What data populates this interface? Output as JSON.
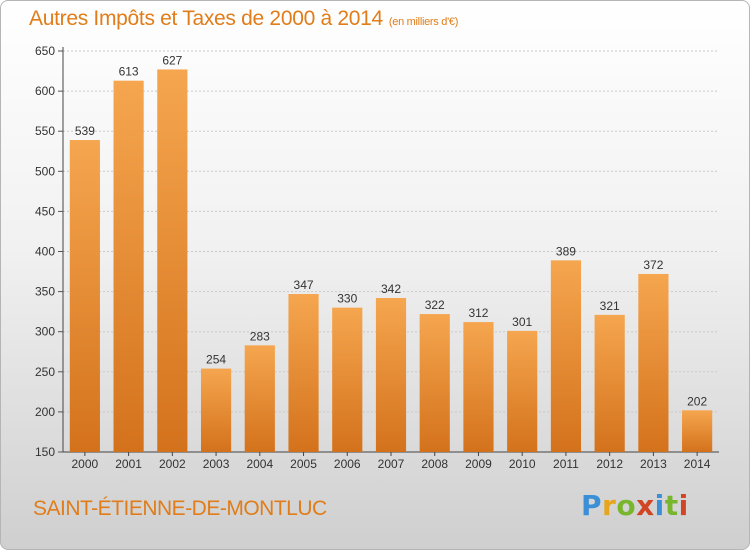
{
  "title": "Autres Impôts et Taxes de 2000 à 2014",
  "subtitle": "(en milliers d'€)",
  "footer": {
    "town": "SAINT-ÉTIENNE-DE-MONTLUC",
    "logo": "Proxiti"
  },
  "colors": {
    "bar_top": "#f5a64f",
    "bar_bottom": "#d4721c",
    "accent": "#e07d1a"
  },
  "chart_data": {
    "type": "bar",
    "categories": [
      "2000",
      "2001",
      "2002",
      "2003",
      "2004",
      "2005",
      "2006",
      "2007",
      "2008",
      "2009",
      "2010",
      "2011",
      "2012",
      "2013",
      "2014"
    ],
    "values": [
      539,
      613,
      627,
      254,
      283,
      347,
      330,
      342,
      322,
      312,
      301,
      389,
      321,
      372,
      202
    ],
    "ylim": [
      150,
      650
    ],
    "yticks": [
      150,
      200,
      250,
      300,
      350,
      400,
      450,
      500,
      550,
      600,
      650
    ],
    "grid": true,
    "data_labels": true
  }
}
